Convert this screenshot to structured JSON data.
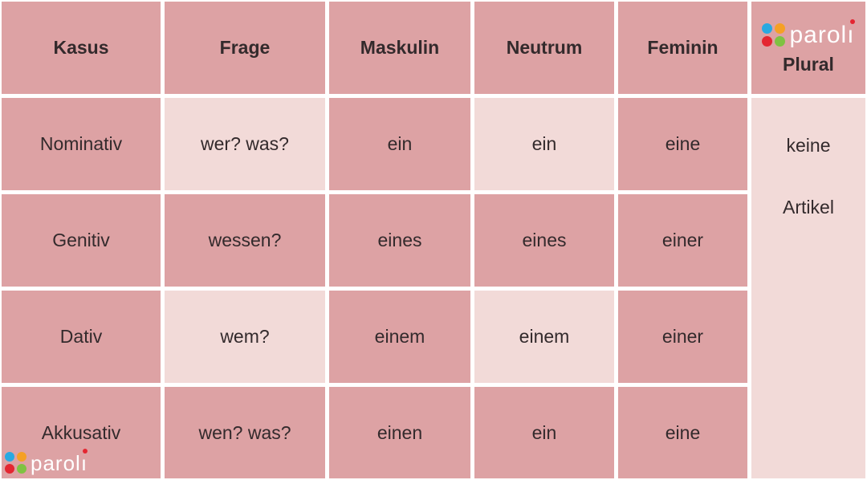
{
  "table": {
    "headers": {
      "kasus": "Kasus",
      "frage": "Frage",
      "maskulin": "Maskulin",
      "neutrum": "Neutrum",
      "feminin": "Feminin",
      "plural": "Plural"
    },
    "rows": [
      {
        "kasus": "Nominativ",
        "frage": "wer? was?",
        "maskulin": "ein",
        "neutrum": "ein",
        "feminin": "eine"
      },
      {
        "kasus": "Genitiv",
        "frage": "wessen?",
        "maskulin": "eines",
        "neutrum": "eines",
        "feminin": "einer"
      },
      {
        "kasus": "Dativ",
        "frage": "wem?",
        "maskulin": "einem",
        "neutrum": "einem",
        "feminin": "einer"
      },
      {
        "kasus": "Akkusativ",
        "frage": "wen? was?",
        "maskulin": "einen",
        "neutrum": "ein",
        "feminin": "eine"
      }
    ],
    "plural_cell": {
      "line1": "keine",
      "line2": "Artikel"
    }
  },
  "logo": {
    "name": "paroli",
    "stem": "parol",
    "dotless_i": "ı"
  },
  "colors": {
    "cell_dark": "#dda2a4",
    "cell_light": "#f2dad8",
    "grid_line": "#ffffff",
    "text": "#332a2c",
    "dot_blue": "#29a9e1",
    "dot_orange": "#f5a025",
    "dot_red": "#e42631",
    "dot_green": "#7fc242"
  }
}
